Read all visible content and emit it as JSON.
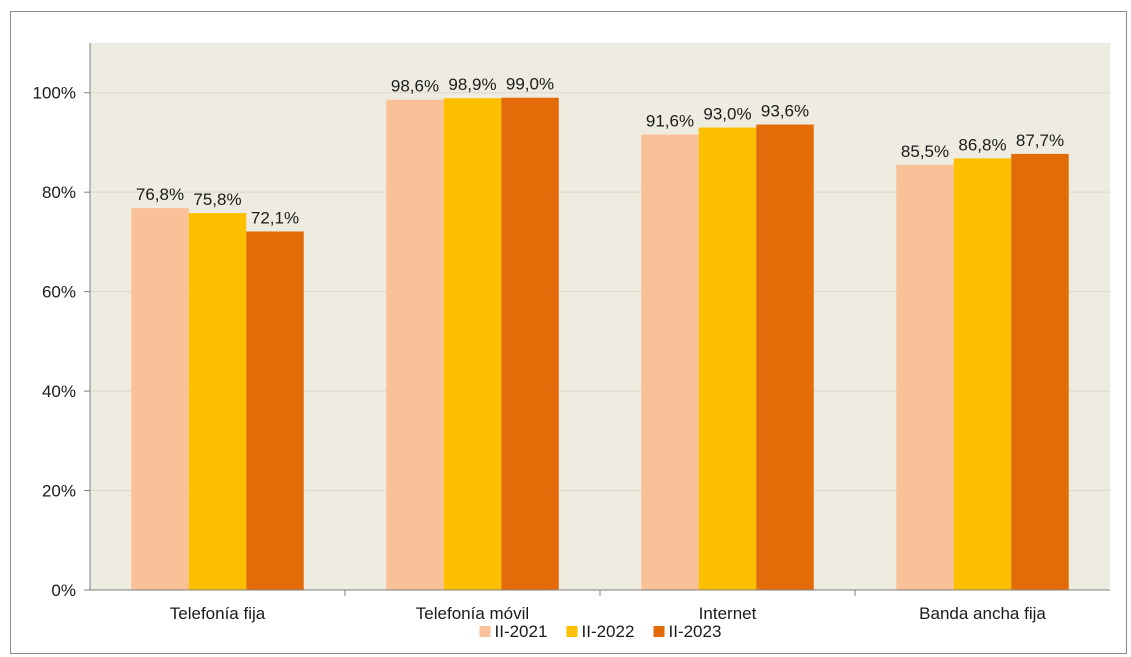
{
  "chart_data": {
    "type": "bar",
    "categories": [
      "Telefonía fija",
      "Telefonía móvil",
      "Internet",
      "Banda ancha fija"
    ],
    "series": [
      {
        "name": "II-2021",
        "values": [
          76.8,
          98.6,
          91.6,
          85.5
        ],
        "labels": [
          "76,8%",
          "98,6%",
          "91,6%",
          "85,5%"
        ],
        "color": "#f8c198"
      },
      {
        "name": "II-2022",
        "values": [
          75.8,
          98.9,
          93.0,
          86.8
        ],
        "labels": [
          "75,8%",
          "98,9%",
          "93,0%",
          "86,8%"
        ],
        "color": "#fdc000"
      },
      {
        "name": "II-2023",
        "values": [
          72.1,
          99.0,
          93.6,
          87.7
        ],
        "labels": [
          "72,1%",
          "99,0%",
          "93,6%",
          "87,7%"
        ],
        "color": "#e36c09"
      }
    ],
    "y_ticks": [
      0,
      20,
      40,
      60,
      80,
      100
    ],
    "y_tick_labels": [
      "0%",
      "20%",
      "40%",
      "60%",
      "80%",
      "100%"
    ],
    "ylim": [
      0,
      110
    ],
    "grid": true,
    "legend_position": "bottom",
    "plot_background": "#eeece1"
  }
}
